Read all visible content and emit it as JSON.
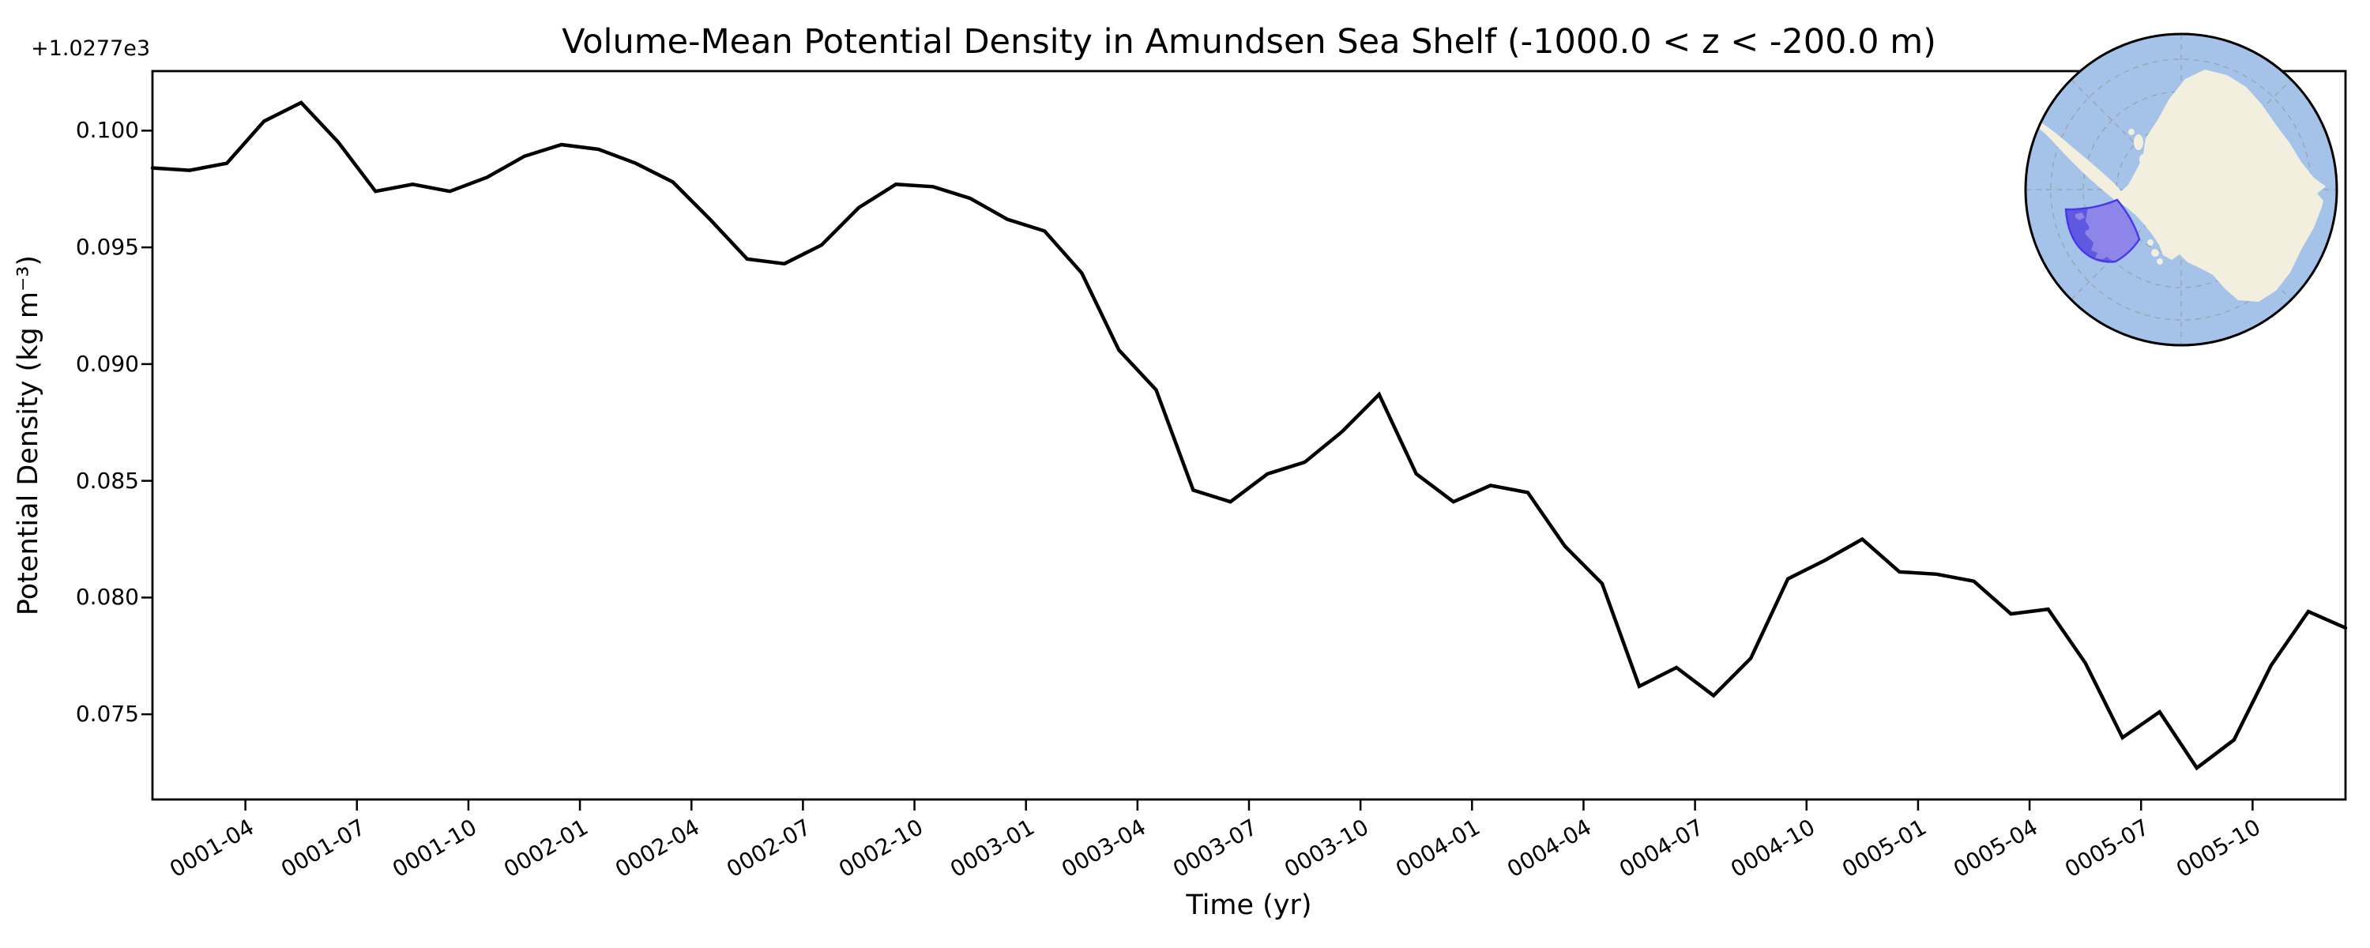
{
  "figure": {
    "background_color": "#ffffff",
    "line_color": "#000000"
  },
  "chart_data": {
    "type": "line",
    "title": "Volume-Mean Potential Density in Amundsen Sea Shelf (-1000.0 < z < -200.0 m)",
    "xlabel": "Time (yr)",
    "ylabel": "Potential Density (kg m⁻³)",
    "y_offset_label": "+1.0277e3",
    "y_base_value": 1027.7,
    "grid": false,
    "legend": "none",
    "line_color": "#000000",
    "ylim": [
      0.07135,
      0.10255
    ],
    "yticks": [
      "0.100",
      "0.095",
      "0.090",
      "0.085",
      "0.080",
      "0.075"
    ],
    "xticks": [
      "0001-04",
      "0001-07",
      "0001-10",
      "0002-01",
      "0002-04",
      "0002-07",
      "0002-10",
      "0003-01",
      "0003-04",
      "0003-07",
      "0003-10",
      "0004-01",
      "0004-04",
      "0004-07",
      "0004-10",
      "0005-01",
      "0005-04",
      "0005-07",
      "0005-10"
    ],
    "xtick_rotation_deg": 30,
    "x": [
      "0001-01",
      "0001-02",
      "0001-03",
      "0001-04",
      "0001-05",
      "0001-06",
      "0001-07",
      "0001-08",
      "0001-09",
      "0001-10",
      "0001-11",
      "0001-12",
      "0002-01",
      "0002-02",
      "0002-03",
      "0002-04",
      "0002-05",
      "0002-06",
      "0002-07",
      "0002-08",
      "0002-09",
      "0002-10",
      "0002-11",
      "0002-12",
      "0003-01",
      "0003-02",
      "0003-03",
      "0003-04",
      "0003-05",
      "0003-06",
      "0003-07",
      "0003-08",
      "0003-09",
      "0003-10",
      "0003-11",
      "0003-12",
      "0004-01",
      "0004-02",
      "0004-03",
      "0004-04",
      "0004-05",
      "0004-06",
      "0004-07",
      "0004-08",
      "0004-09",
      "0004-10",
      "0004-11",
      "0004-12",
      "0005-01",
      "0005-02",
      "0005-03",
      "0005-04",
      "0005-05",
      "0005-06",
      "0005-07",
      "0005-08",
      "0005-09",
      "0005-10",
      "0005-11",
      "0005-12"
    ],
    "values": [
      0.0984,
      0.0983,
      0.0986,
      0.1004,
      0.1012,
      0.0995,
      0.0974,
      0.0977,
      0.0974,
      0.098,
      0.0989,
      0.0994,
      0.0992,
      0.0986,
      0.0978,
      0.0962,
      0.0945,
      0.0943,
      0.0951,
      0.0967,
      0.0977,
      0.0976,
      0.0971,
      0.0962,
      0.0957,
      0.0939,
      0.0906,
      0.0889,
      0.0846,
      0.0841,
      0.0853,
      0.0858,
      0.0871,
      0.0887,
      0.0853,
      0.0841,
      0.0848,
      0.0845,
      0.0822,
      0.0806,
      0.0762,
      0.077,
      0.0758,
      0.0774,
      0.0808,
      0.0816,
      0.0825,
      0.0811,
      0.081,
      0.0807,
      0.0793,
      0.0795,
      0.0772,
      0.074,
      0.0751,
      0.0727,
      0.0739,
      0.0771,
      0.0794,
      0.0787
    ]
  },
  "inset_map": {
    "description": "South polar view of Antarctica with Amundsen Sea Shelf region highlighted",
    "ocean_color": "#a5c2e9",
    "land_color": "#f2efdf",
    "graticule_color": "#9aa0a8",
    "region_fill_color": "#8d85e8",
    "region_shelf_fill_color": "#5f58e0",
    "region_outline_color": "#4638ea",
    "border_color": "#000000"
  }
}
